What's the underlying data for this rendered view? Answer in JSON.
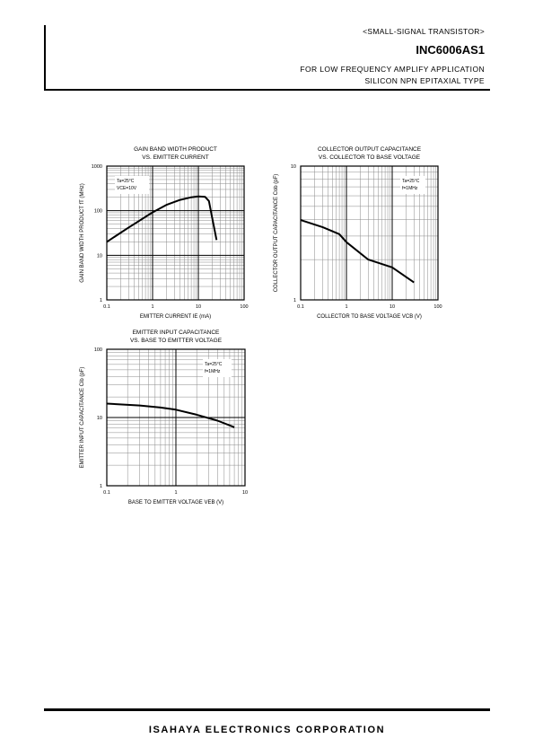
{
  "header": {
    "category": "<SMALL-SIGNAL TRANSISTOR>",
    "part_number": "INC6006AS1",
    "application": "FOR LOW FREQUENCY AMPLIFY APPLICATION",
    "device_type": "SILICON NPN EPITAXIAL TYPE"
  },
  "footer": {
    "company": "ISAHAYA ELECTRONICS CORPORATION"
  },
  "chart_data": [
    {
      "type": "line",
      "title": "GAIN BAND WIDTH PRODUCT",
      "subtitle": "VS. EMITTER CURRENT",
      "xlabel": "EMITTER CURRENT IE (mA)",
      "ylabel": "GAIN BAND WIDTH PRODUCT fT (MHz)",
      "xscale": "log",
      "yscale": "log",
      "xlim": [
        0.1,
        100
      ],
      "ylim": [
        1,
        1000
      ],
      "xticks": [
        "0.1",
        "1",
        "10",
        "100"
      ],
      "yticks": [
        "1",
        "10",
        "100",
        "1000"
      ],
      "note": [
        "Ta=25°C",
        "VCE=10V"
      ],
      "grid": true,
      "series": [
        {
          "x": [
            0.1,
            0.3,
            1,
            2,
            4,
            7,
            10,
            14,
            17,
            20,
            25
          ],
          "y": [
            20,
            42,
            92,
            135,
            175,
            200,
            210,
            205,
            165,
            70,
            22
          ]
        }
      ]
    },
    {
      "type": "line",
      "title": "COLLECTOR OUTPUT CAPACITANCE",
      "subtitle": "VS. COLLECTOR TO BASE VOLTAGE",
      "xlabel": "COLLECTOR TO BASE VOLTAGE VCB (V)",
      "ylabel": "COLLECTOR OUTPUT CAPACITANCE Cob (pF)",
      "xscale": "log",
      "yscale": "log",
      "xlim": [
        0.1,
        100
      ],
      "ylim": [
        1,
        10
      ],
      "xticks": [
        "0.1",
        "1",
        "10",
        "100"
      ],
      "yticks": [
        "1",
        "10"
      ],
      "note": [
        "Ta=25°C",
        "f=1MHz"
      ],
      "grid": true,
      "series": [
        {
          "x": [
            0.1,
            0.3,
            0.7,
            1,
            3,
            10,
            30
          ],
          "y": [
            3.95,
            3.5,
            3.1,
            2.7,
            2.0,
            1.75,
            1.35
          ]
        }
      ]
    },
    {
      "type": "line",
      "title": "EMITTER INPUT CAPACITANCE",
      "subtitle": "VS. BASE TO EMITTER VOLTAGE",
      "xlabel": "BASE TO EMITTER VOLTAGE VEB (V)",
      "ylabel": "EMITTER INPUT CAPACITANCE Cib (pF)",
      "xscale": "log",
      "yscale": "log",
      "xlim": [
        0.1,
        10
      ],
      "ylim": [
        1,
        100
      ],
      "xticks": [
        "0.1",
        "1",
        "10"
      ],
      "yticks": [
        "1",
        "10",
        "100"
      ],
      "note": [
        "Ta=25°C",
        "f=1MHz"
      ],
      "grid": true,
      "series": [
        {
          "x": [
            0.1,
            0.3,
            0.6,
            1,
            2,
            4,
            7
          ],
          "y": [
            16,
            15,
            14,
            13,
            11,
            9,
            7.2
          ]
        }
      ]
    }
  ]
}
